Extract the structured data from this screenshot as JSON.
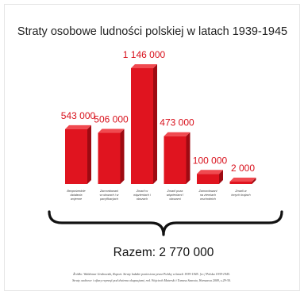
{
  "chart_data": {
    "type": "bar",
    "title": "Straty osobowe ludności polskiej w latach 1939-1945",
    "categories": [
      [
        "Bezpośrednie",
        "działania",
        "wojenne"
      ],
      [
        "Zamordowani",
        "w obozach i w",
        "pacyfikacjach"
      ],
      [
        "Zmarli w",
        "więzieniach i",
        "obozach"
      ],
      [
        "Zmarli poza",
        "więzieniami i",
        "obozami"
      ],
      [
        "Zamordowani",
        "na ziemiach",
        "wschodnich"
      ],
      [
        "Zmarli w",
        "innych krajach"
      ]
    ],
    "values": [
      543000,
      506000,
      1146000,
      473000,
      100000,
      2000
    ],
    "value_labels": [
      "543 000",
      "506 000",
      "1 146 000",
      "473 000",
      "100 000",
      "2 000"
    ],
    "ylim": [
      0,
      1146000
    ],
    "grid": false,
    "legend": "none",
    "xlabel": "",
    "ylabel": "",
    "total_label": "Razem: 2 770 000",
    "colors": {
      "bar_front": "#e0141f",
      "bar_side": "#9e0a12",
      "bar_top": "#f04a50",
      "value_text": "#d8101b",
      "brace": "#111111"
    }
  },
  "source": [
    "Źródło: Waldemar Grabowski, Raport. Straty ludzkie poniesione przez Polskę w latach 1939-1945. [w:] Polska 1939-1945.",
    "Straty osobowe i ofiary represji pod dwiema okupacjami, red. Wojciech Materski i Tomasz Szarota, Warszawa 2009, s.29-30."
  ]
}
